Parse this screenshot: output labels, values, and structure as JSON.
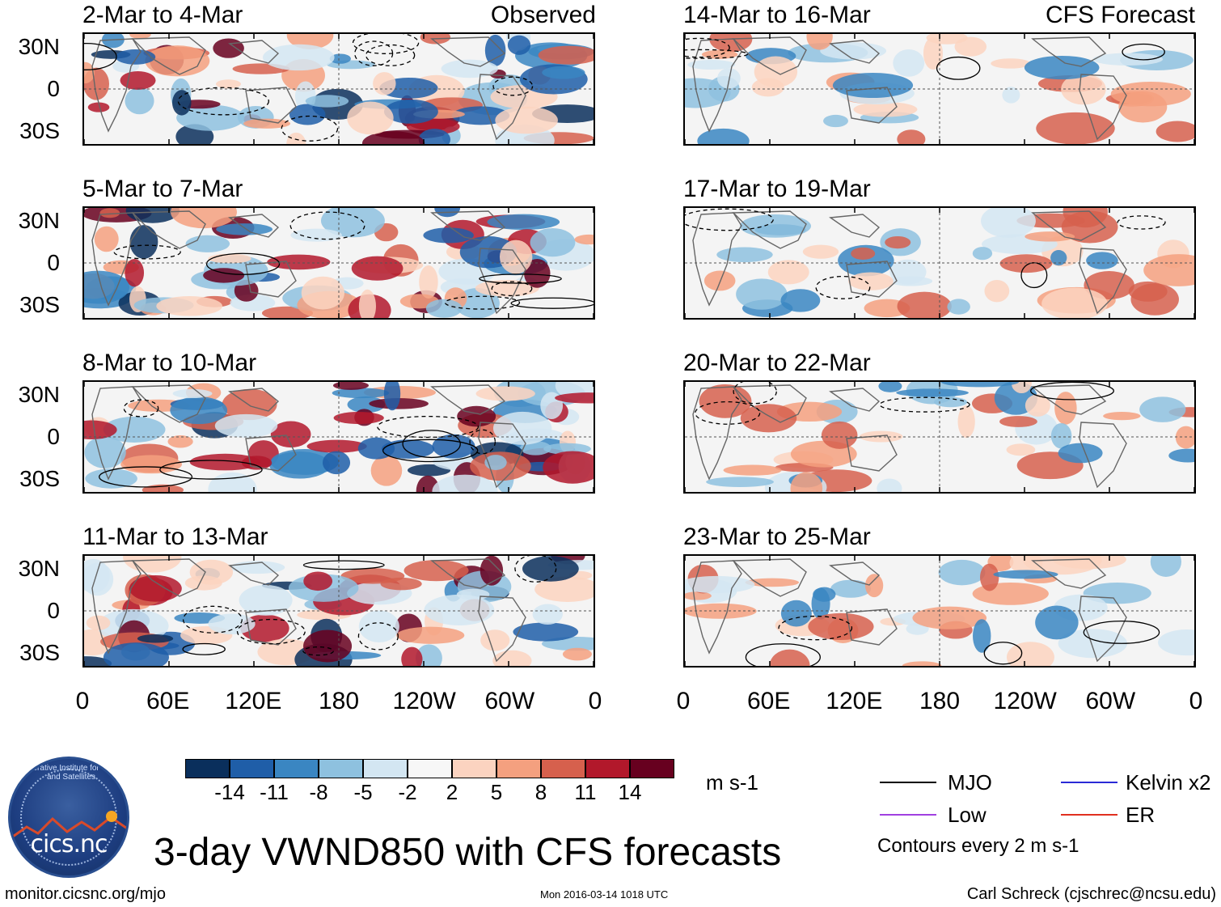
{
  "chart_data": {
    "type": "heatmap",
    "title": "3-day VWND850 with CFS forecasts",
    "variable": "VWND850",
    "units": "m s-1",
    "lat_ticks": [
      "30N",
      "0",
      "30S"
    ],
    "lon_ticks": [
      "0",
      "60E",
      "120E",
      "180",
      "120W",
      "60W",
      "0"
    ],
    "colorbar": {
      "levels": [
        "-14",
        "-11",
        "-8",
        "-5",
        "-2",
        "2",
        "5",
        "8",
        "11",
        "14"
      ],
      "colors": [
        "#0a2f5c",
        "#1f5ea8",
        "#3a86c2",
        "#8ec1df",
        "#d3e6f2",
        "#f7f7f7",
        "#fbd3c0",
        "#f4a07f",
        "#d6604d",
        "#b2182b",
        "#67001f"
      ]
    },
    "columns": [
      {
        "label": "Observed",
        "panels": [
          {
            "title": "2-Mar to 4-Mar"
          },
          {
            "title": "5-Mar to 7-Mar"
          },
          {
            "title": "8-Mar to 10-Mar"
          },
          {
            "title": "11-Mar to 13-Mar"
          }
        ]
      },
      {
        "label": "CFS Forecast",
        "panels": [
          {
            "title": "14-Mar to 16-Mar"
          },
          {
            "title": "17-Mar to 19-Mar"
          },
          {
            "title": "20-Mar to 22-Mar"
          },
          {
            "title": "23-Mar to 25-Mar"
          }
        ]
      }
    ],
    "legend": [
      {
        "name": "MJO",
        "color": "#000000"
      },
      {
        "name": "Kelvin x2",
        "color": "#2a2ad6"
      },
      {
        "name": "Low",
        "color": "#a040e0"
      },
      {
        "name": "ER",
        "color": "#e03020"
      }
    ],
    "contour_note": "Contours every 2 m s-1"
  },
  "logo": {
    "text": "cics.nc",
    "arc_text": "Cooperative Institute for Climate and Satellites"
  },
  "footer": {
    "left": "monitor.cicsnc.org/mjo",
    "middle": "Mon 2016-03-14 1018 UTC",
    "right": "Carl Schreck (cjschrec@ncsu.edu)"
  }
}
